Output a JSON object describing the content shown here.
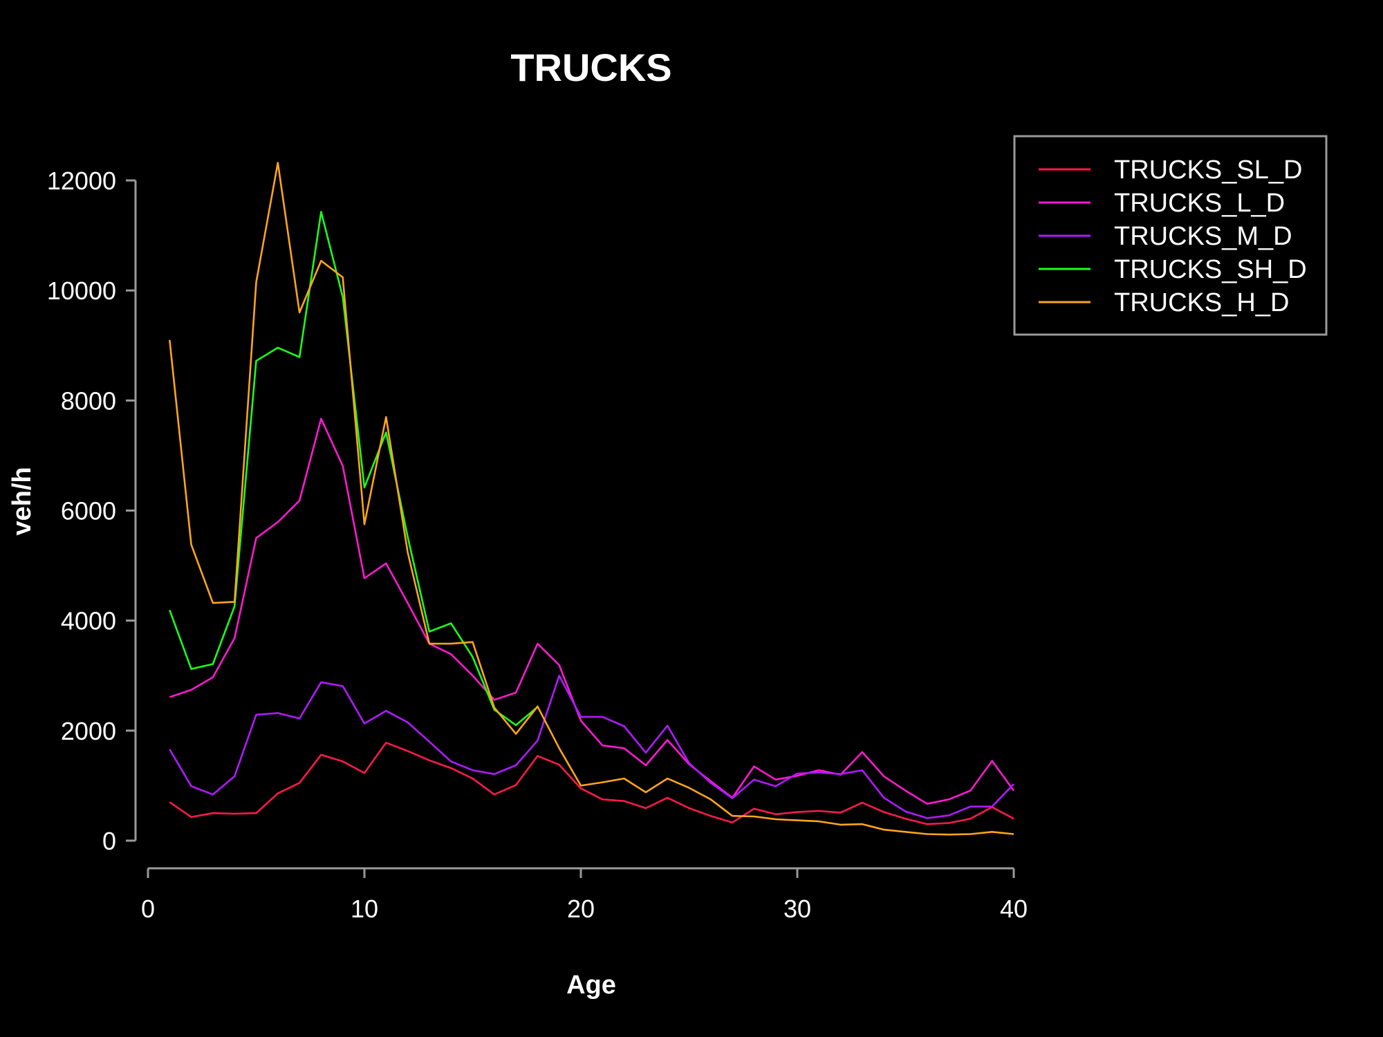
{
  "chart_data": {
    "type": "line",
    "title": "TRUCKS",
    "xlabel": "Age",
    "ylabel": "veh/h",
    "xlim": [
      0,
      40
    ],
    "ylim": [
      0,
      12000
    ],
    "x_ticks": [
      0,
      10,
      20,
      30,
      40
    ],
    "y_ticks": [
      0,
      2000,
      4000,
      6000,
      8000,
      10000,
      12000
    ],
    "grid": false,
    "legend_position": "top-right",
    "background": "#000000",
    "x": [
      1,
      2,
      3,
      4,
      5,
      6,
      7,
      8,
      9,
      10,
      11,
      12,
      13,
      14,
      15,
      16,
      17,
      18,
      19,
      20,
      21,
      22,
      23,
      24,
      25,
      26,
      27,
      28,
      29,
      30,
      31,
      32,
      33,
      34,
      35,
      36,
      37,
      38,
      39,
      40
    ],
    "series": [
      {
        "name": "TRUCKS_SL_D",
        "color": "#ff1a4b",
        "values": [
          700,
          430,
          500,
          490,
          500,
          860,
          1050,
          1560,
          1440,
          1230,
          1780,
          1630,
          1460,
          1320,
          1130,
          840,
          1010,
          1540,
          1380,
          950,
          750,
          720,
          590,
          780,
          590,
          450,
          330,
          580,
          480,
          520,
          540,
          510,
          690,
          520,
          400,
          300,
          320,
          400,
          610,
          400
        ]
      },
      {
        "name": "TRUCKS_L_D",
        "color": "#ff1ad1",
        "values": [
          2610,
          2740,
          2970,
          3680,
          5500,
          5790,
          6180,
          7670,
          6810,
          4770,
          5040,
          4320,
          3580,
          3390,
          3000,
          2560,
          2690,
          3580,
          3190,
          2180,
          1730,
          1680,
          1370,
          1830,
          1390,
          1080,
          780,
          1350,
          1110,
          1180,
          1280,
          1200,
          1610,
          1170,
          910,
          670,
          750,
          910,
          1450,
          910
        ]
      },
      {
        "name": "TRUCKS_M_D",
        "color": "#b01aff",
        "values": [
          1660,
          990,
          840,
          1170,
          2290,
          2320,
          2220,
          2880,
          2810,
          2130,
          2360,
          2150,
          1800,
          1440,
          1280,
          1210,
          1370,
          1820,
          3000,
          2250,
          2250,
          2080,
          1600,
          2090,
          1410,
          1050,
          770,
          1110,
          990,
          1220,
          1240,
          1210,
          1280,
          780,
          530,
          410,
          460,
          620,
          620,
          1030
        ]
      },
      {
        "name": "TRUCKS_SH_D",
        "color": "#1aff1a",
        "values": [
          4190,
          3120,
          3210,
          4260,
          8720,
          8960,
          8790,
          11430,
          9880,
          6420,
          7420,
          5520,
          3800,
          3950,
          3340,
          2380,
          2100,
          2430,
          null,
          null,
          null,
          null,
          null,
          null,
          null,
          null,
          null,
          null,
          null,
          null,
          null,
          null,
          null,
          null,
          null,
          null,
          null,
          null,
          null,
          null
        ]
      },
      {
        "name": "TRUCKS_H_D",
        "color": "#ffa51a",
        "values": [
          9100,
          5380,
          4320,
          4340,
          10150,
          12320,
          9600,
          10540,
          10240,
          5750,
          7700,
          5240,
          3580,
          3580,
          3610,
          2420,
          1940,
          2440,
          1680,
          1000,
          1060,
          1130,
          880,
          1130,
          960,
          750,
          450,
          440,
          390,
          370,
          350,
          290,
          300,
          200,
          160,
          120,
          110,
          120,
          160,
          120
        ]
      }
    ]
  }
}
